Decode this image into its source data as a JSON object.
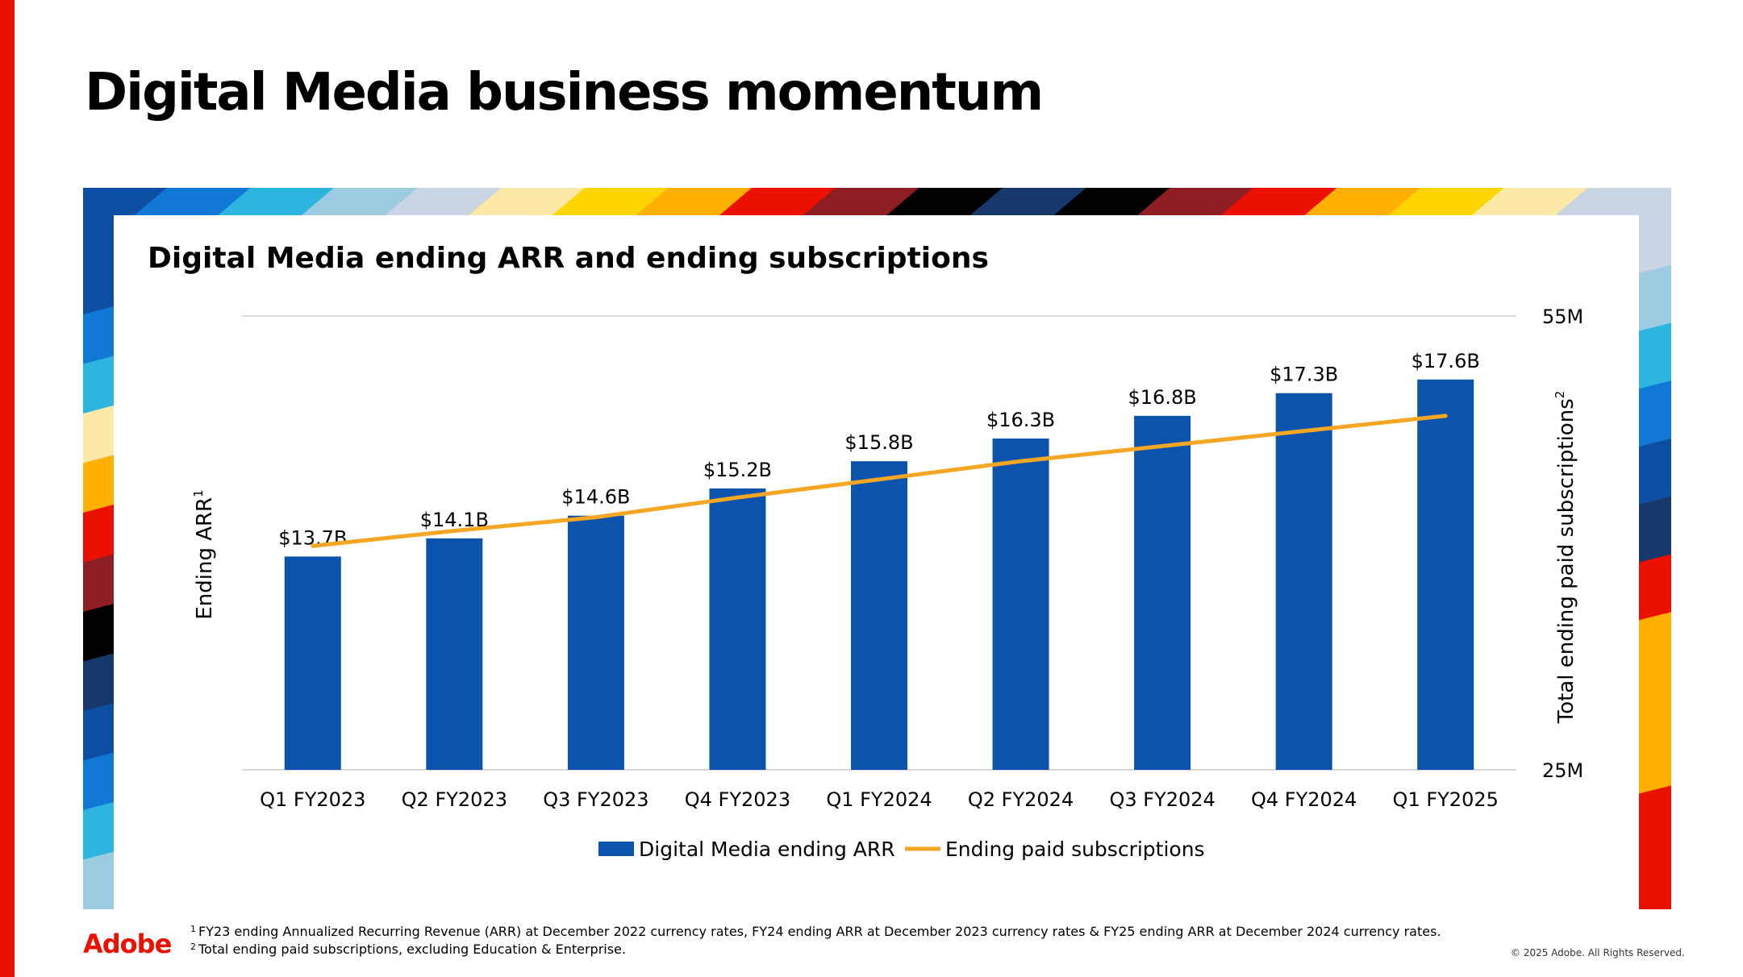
{
  "slide": {
    "title": "Digital Media business momentum",
    "logo_text": "Adobe",
    "copyright": "© 2025 Adobe. All Rights Reserved.",
    "footnotes": [
      {
        "mark": "1",
        "text": "FY23 ending Annualized Recurring Revenue (ARR) at December 2022 currency rates,  FY24 ending ARR at December 2023 currency rates & FY25 ending ARR at December 2024 currency rates."
      },
      {
        "mark": "2",
        "text": "Total ending paid subscriptions, excluding Education & Enterprise."
      }
    ]
  },
  "colors": {
    "brand_red": "#eb1000",
    "bar_blue": "#0b53ad",
    "line_orange": "#f5a623",
    "gridline": "#d9d9d9",
    "ribbon": [
      "#0b4ea2",
      "#1178d6",
      "#2db5e0",
      "#9ccbe2",
      "#c9d5e2",
      "#fde9a7",
      "#ffd500",
      "#ffb000",
      "#eb1000",
      "#8f1d24",
      "#000000",
      "#16386b"
    ]
  },
  "chart_data": {
    "type": "bar",
    "title": "Digital Media ending ARR and ending subscriptions",
    "categories": [
      "Q1 FY2023",
      "Q2 FY2023",
      "Q3 FY2023",
      "Q4 FY2023",
      "Q1 FY2024",
      "Q2 FY2024",
      "Q3 FY2024",
      "Q4 FY2024",
      "Q1 FY2025"
    ],
    "series": [
      {
        "name": "Digital Media ending ARR",
        "type": "bar",
        "axis": "left",
        "values": [
          13.7,
          14.1,
          14.6,
          15.2,
          15.8,
          16.3,
          16.8,
          17.3,
          17.6
        ],
        "labels": [
          "$13.7B",
          "$14.1B",
          "$14.6B",
          "$15.2B",
          "$15.8B",
          "$16.3B",
          "$16.8B",
          "$17.3B",
          "$17.6B"
        ]
      },
      {
        "name": "Ending paid subscriptions",
        "type": "line",
        "axis": "right",
        "values": [
          39.8,
          40.8,
          41.7,
          43.0,
          44.2,
          45.4,
          46.4,
          47.4,
          48.4
        ]
      }
    ],
    "ylabel_left": "Ending ARR",
    "ylabel_left_sup": "1",
    "ylim_left": [
      9,
      19
    ],
    "ylabel_right": "Total ending paid subscriptions",
    "ylabel_right_sup": "2",
    "ylim_right": [
      25,
      55
    ],
    "yticks_right": [
      "25M",
      "55M"
    ],
    "legend": "bottom-center",
    "grid": false
  }
}
